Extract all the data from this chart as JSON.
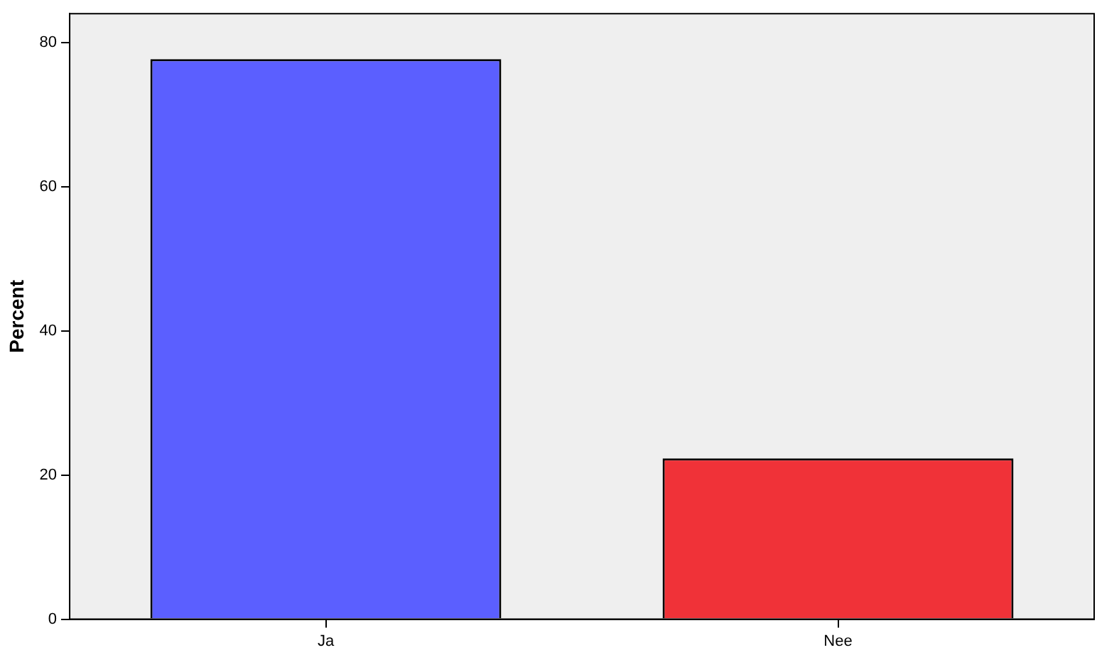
{
  "chart_data": {
    "type": "bar",
    "ylabel": "Percent",
    "categories": [
      "Ja",
      "Nee"
    ],
    "values": [
      77.7,
      22.3
    ],
    "colors": [
      "#5b5fff",
      "#f03238"
    ],
    "ylim": [
      0,
      84
    ],
    "yticks": [
      0,
      20,
      40,
      60,
      80
    ],
    "grid": false,
    "legend": false
  }
}
